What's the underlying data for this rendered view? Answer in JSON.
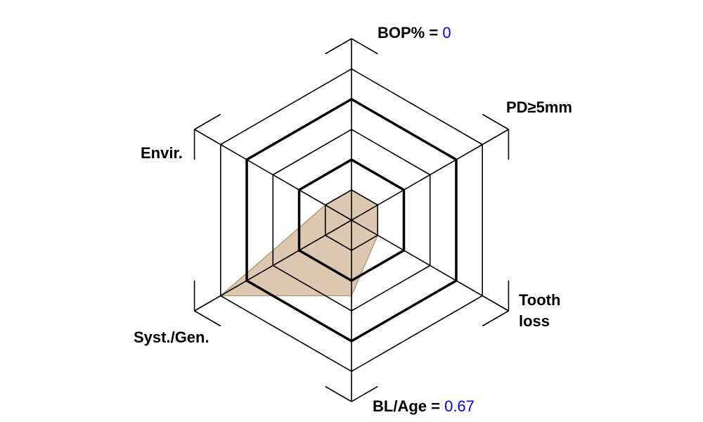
{
  "chart_data": {
    "type": "radar",
    "axes": [
      {
        "label": "BOP%",
        "value_text": "0",
        "value": 1
      },
      {
        "label": "PD≥5mm",
        "value": 1
      },
      {
        "label": "Tooth loss",
        "value": 1
      },
      {
        "label": "BL/Age",
        "value_text": "0.67",
        "value": 2.5
      },
      {
        "label": "Syst./Gen.",
        "value": 5
      },
      {
        "label": "Envir.",
        "value": 1
      }
    ],
    "levels": 5,
    "bold_levels": [
      2,
      4
    ],
    "range": [
      0,
      5
    ],
    "fill_color": "#c9ab85",
    "value_color": "#0000ff"
  }
}
